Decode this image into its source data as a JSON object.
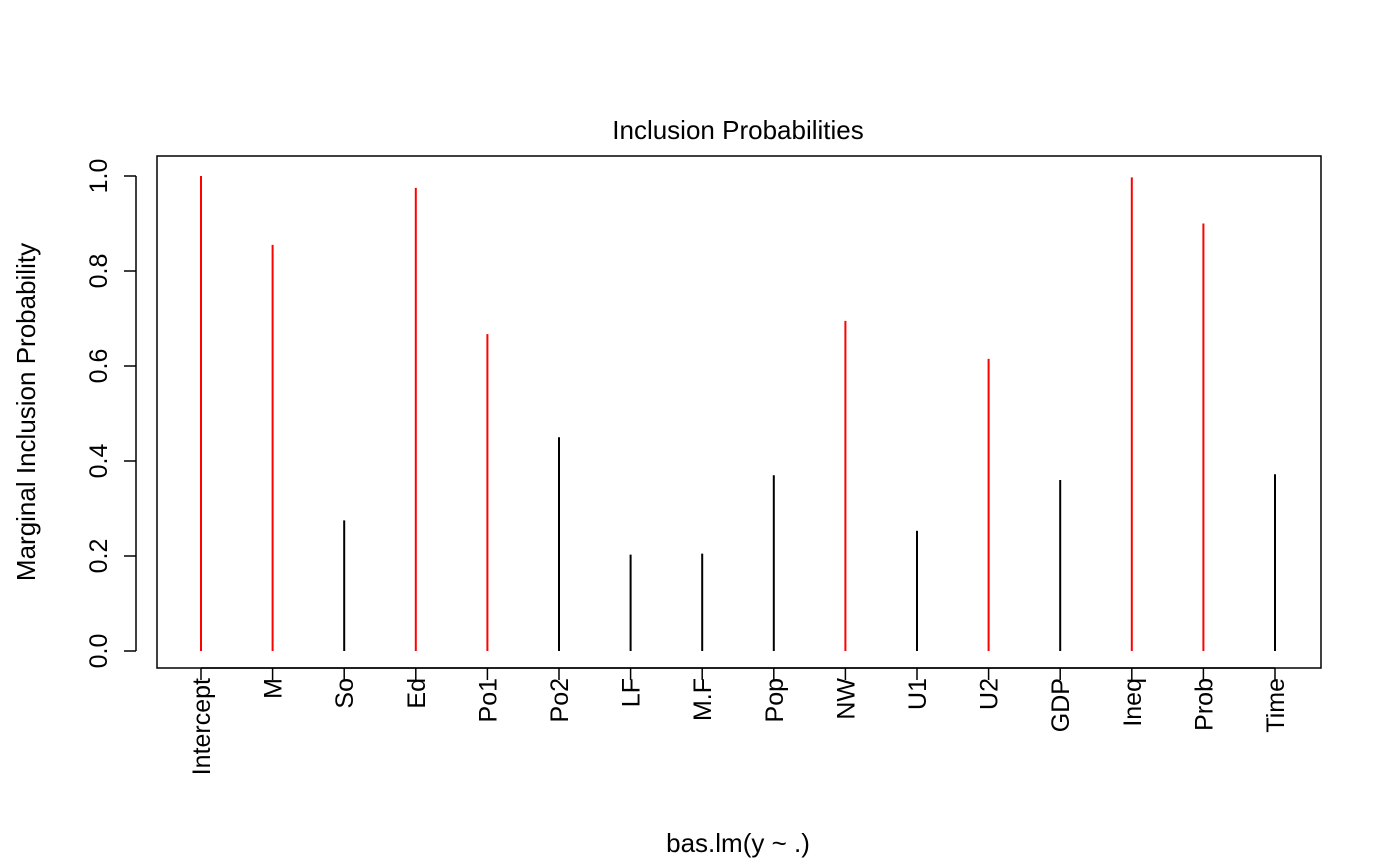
{
  "chart_data": {
    "type": "bar",
    "title": "Inclusion Probabilities",
    "xlabel": "bas.lm(y ~ .)",
    "ylabel": "Marginal Inclusion Probability",
    "ylim": [
      0,
      1.0
    ],
    "yticks": [
      "0.0",
      "0.2",
      "0.4",
      "0.6",
      "0.8",
      "1.0"
    ],
    "grid": false,
    "categories": [
      "Intercept",
      "M",
      "So",
      "Ed",
      "Po1",
      "Po2",
      "LF",
      "M.F",
      "Pop",
      "NW",
      "U1",
      "U2",
      "GDP",
      "Ineq",
      "Prob",
      "Time"
    ],
    "values": [
      1.0,
      0.855,
      0.275,
      0.975,
      0.667,
      0.45,
      0.203,
      0.205,
      0.37,
      0.695,
      0.253,
      0.615,
      0.36,
      0.997,
      0.9,
      0.372
    ],
    "colors": [
      "#ff0000",
      "#ff0000",
      "#000000",
      "#ff0000",
      "#ff0000",
      "#000000",
      "#000000",
      "#000000",
      "#000000",
      "#ff0000",
      "#000000",
      "#ff0000",
      "#000000",
      "#ff0000",
      "#ff0000",
      "#000000"
    ]
  }
}
